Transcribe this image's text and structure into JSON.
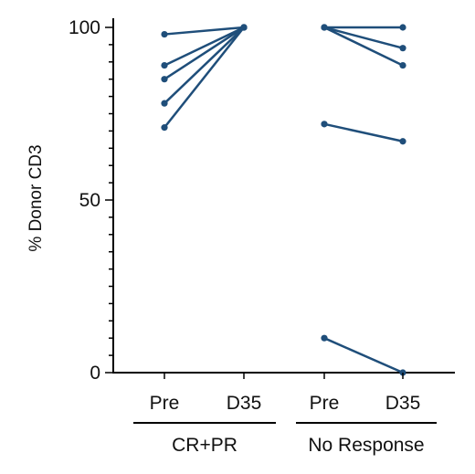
{
  "chart_data": {
    "type": "line",
    "ylabel": "% Donor CD3",
    "ylim": [
      0,
      100
    ],
    "y_major_ticks": [
      0,
      50,
      100
    ],
    "y_minor_step": 5,
    "grid": false,
    "line_color": "#1f4e7a",
    "categories": [
      "Pre",
      "D35",
      "Pre",
      "D35"
    ],
    "groups": [
      {
        "name": "CR+PR",
        "categories": [
          "Pre",
          "D35"
        ],
        "pairs": [
          {
            "pre": 98,
            "d35": 100
          },
          {
            "pre": 89,
            "d35": 100
          },
          {
            "pre": 85,
            "d35": 100
          },
          {
            "pre": 78,
            "d35": 100
          },
          {
            "pre": 71,
            "d35": 100
          }
        ]
      },
      {
        "name": "No Response",
        "categories": [
          "Pre",
          "D35"
        ],
        "pairs": [
          {
            "pre": 100,
            "d35": 100
          },
          {
            "pre": 100,
            "d35": 94
          },
          {
            "pre": 100,
            "d35": 89
          },
          {
            "pre": 72,
            "d35": 67
          },
          {
            "pre": 10,
            "d35": 0
          }
        ]
      }
    ]
  }
}
